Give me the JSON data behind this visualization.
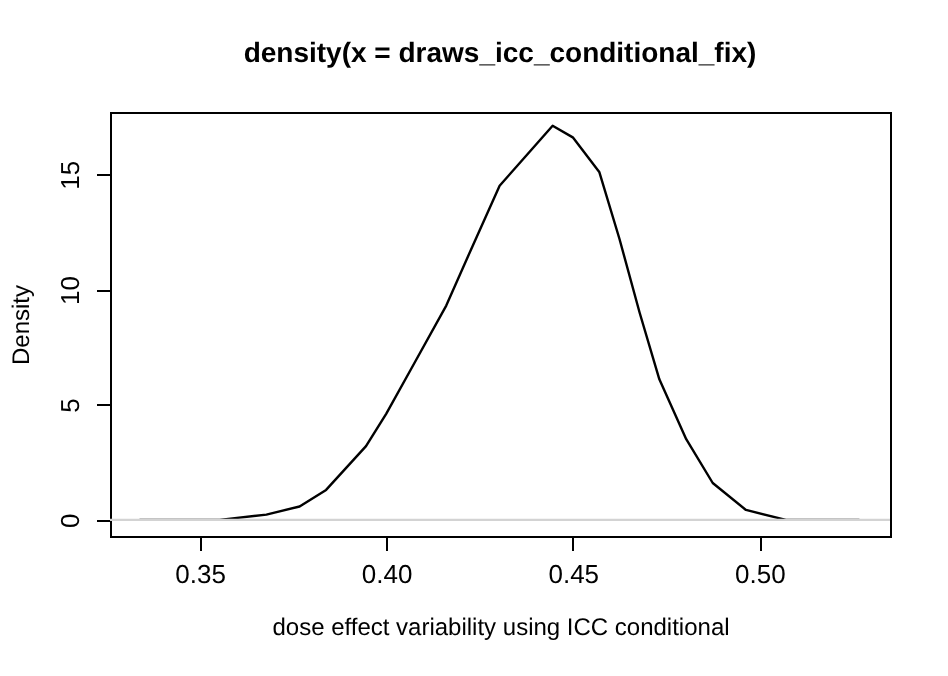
{
  "chart_data": {
    "type": "line",
    "title": "density(x = draws_icc_conditional_fix)",
    "xlabel": "dose effect variability using ICC conditional",
    "ylabel": "Density",
    "x": [
      0.3339,
      0.35,
      0.3554,
      0.3679,
      0.3768,
      0.3839,
      0.3946,
      0.4,
      0.4072,
      0.4161,
      0.4232,
      0.4304,
      0.4375,
      0.4446,
      0.45,
      0.4571,
      0.4625,
      0.4679,
      0.4732,
      0.4804,
      0.4875,
      0.4964,
      0.5071,
      0.5268
    ],
    "series": [
      {
        "color": "#000000",
        "values": [
          0,
          0,
          0,
          0.23,
          0.58,
          1.3,
          3.2,
          4.6,
          6.7,
          9.3,
          11.9,
          14.5,
          15.8,
          17.1,
          16.6,
          15.1,
          12.2,
          9.0,
          6.1,
          3.5,
          1.6,
          0.43,
          0,
          0
        ]
      }
    ],
    "xlim": [
      0.326,
      0.535
    ],
    "ylim": [
      -0.7,
      17.7
    ],
    "xticks": [
      {
        "value": 0.35,
        "label": "0.35"
      },
      {
        "value": 0.4,
        "label": "0.40"
      },
      {
        "value": 0.45,
        "label": "0.45"
      },
      {
        "value": 0.5,
        "label": "0.50"
      }
    ],
    "yticks": [
      0,
      5,
      10,
      15
    ],
    "ref_lines": [
      {
        "axis": "y",
        "value": 0,
        "color": "#d3d3d3"
      }
    ],
    "grid": false,
    "marker": "none",
    "line_style": "solid"
  }
}
